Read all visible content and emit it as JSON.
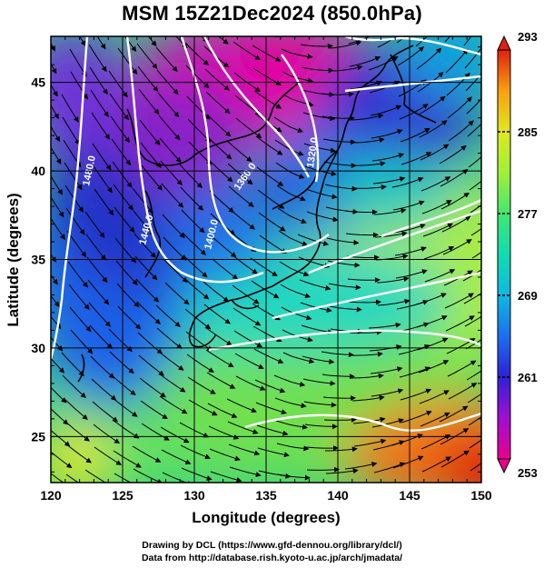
{
  "title": "MSM 15Z21Dec2024 (850.0hPa)",
  "axes": {
    "xlabel": "Longitude (degrees)",
    "ylabel": "Latitude  (degrees)",
    "xticks": [
      "120",
      "125",
      "130",
      "135",
      "140",
      "145",
      "150"
    ],
    "yticks": [
      "25",
      "30",
      "35",
      "40",
      "45"
    ],
    "xlim": [
      120,
      150
    ],
    "ylim": [
      22.4,
      47.6
    ]
  },
  "colorbar": {
    "labels": [
      "293",
      "285",
      "277",
      "269",
      "261",
      "253"
    ],
    "range": [
      253,
      293
    ],
    "colors": [
      "#e8008c",
      "#a010d0",
      "#3020d8",
      "#1a70ee",
      "#10b8e0",
      "#10dcb0",
      "#40e870",
      "#a0f038",
      "#e0e820",
      "#f8a010",
      "#f05010",
      "#e02010"
    ]
  },
  "contours": [
    {
      "label": "1480.0"
    },
    {
      "label": "1440.0"
    },
    {
      "label": "1400.0"
    },
    {
      "label": "1360.0"
    },
    {
      "label": "1320.0"
    }
  ],
  "credits": {
    "line1": "Drawing by DCL (https://www.gfd-dennou.org/library/dcl/)",
    "line2": "Data from http://database.rish.kyoto-u.ac.jp/arch/jmadata/"
  }
}
